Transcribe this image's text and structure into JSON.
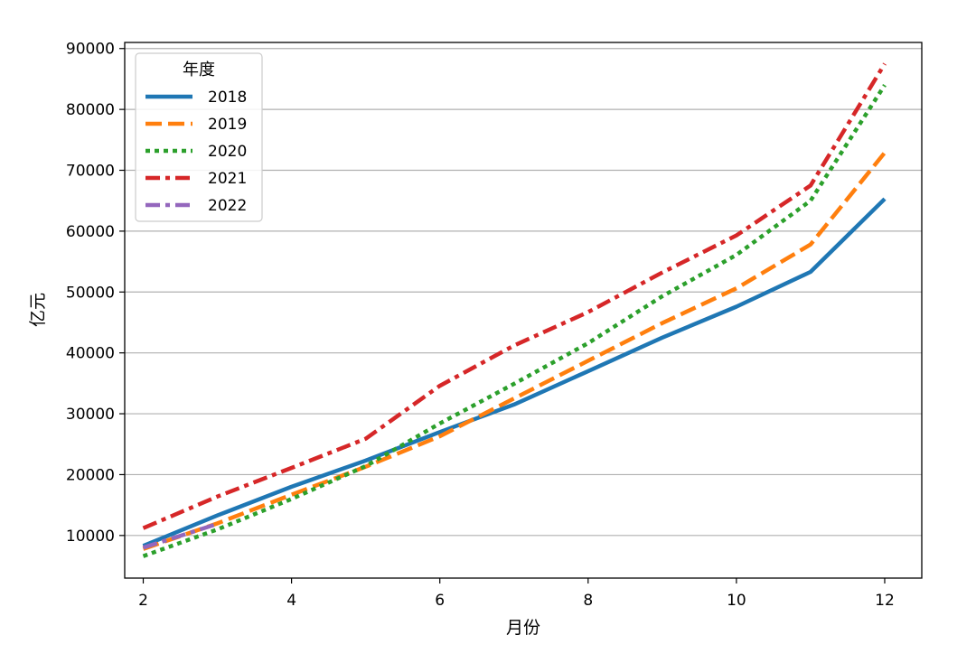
{
  "chart_data": {
    "type": "line",
    "title": "",
    "xlabel": "月份",
    "ylabel": "亿元",
    "xlim": [
      1.75,
      12.5
    ],
    "ylim": [
      3000,
      91000
    ],
    "x_ticks": [
      2,
      4,
      6,
      8,
      10,
      12
    ],
    "y_ticks": [
      10000,
      20000,
      30000,
      40000,
      50000,
      60000,
      70000,
      80000,
      90000
    ],
    "grid": "horizontal",
    "legend": {
      "title": "年度",
      "position": "top-left"
    },
    "series": [
      {
        "name": "2018",
        "color": "#1f77b4",
        "dash": "solid",
        "x": [
          2,
          3,
          4,
          5,
          6,
          7,
          8,
          9,
          10,
          11,
          12
        ],
        "y": [
          8300,
          13300,
          18000,
          22300,
          27000,
          31500,
          37000,
          42500,
          47600,
          53300,
          65300
        ]
      },
      {
        "name": "2019",
        "color": "#ff7f0e",
        "dash": "dashed",
        "x": [
          2,
          3,
          4,
          5,
          6,
          7,
          8,
          9,
          10,
          11,
          12
        ],
        "y": [
          7800,
          12000,
          16700,
          21300,
          26300,
          32500,
          38700,
          44900,
          50600,
          57800,
          72900
        ]
      },
      {
        "name": "2020",
        "color": "#2ca02c",
        "dash": "dotted",
        "x": [
          2,
          3,
          4,
          5,
          6,
          7,
          8,
          9,
          10,
          11,
          12
        ],
        "y": [
          6600,
          11000,
          16000,
          21400,
          28400,
          34900,
          41600,
          49300,
          56100,
          65000,
          84000
        ]
      },
      {
        "name": "2021",
        "color": "#d62728",
        "dash": "dashdot",
        "x": [
          2,
          3,
          4,
          5,
          6,
          7,
          8,
          9,
          10,
          11,
          12
        ],
        "y": [
          11200,
          16400,
          21100,
          25900,
          34600,
          41200,
          46700,
          53200,
          59300,
          67500,
          87500
        ]
      },
      {
        "name": "2022",
        "color": "#9467bd",
        "dash": "dashdot",
        "x": [
          2,
          3
        ],
        "y": [
          8000,
          11900
        ]
      }
    ]
  }
}
